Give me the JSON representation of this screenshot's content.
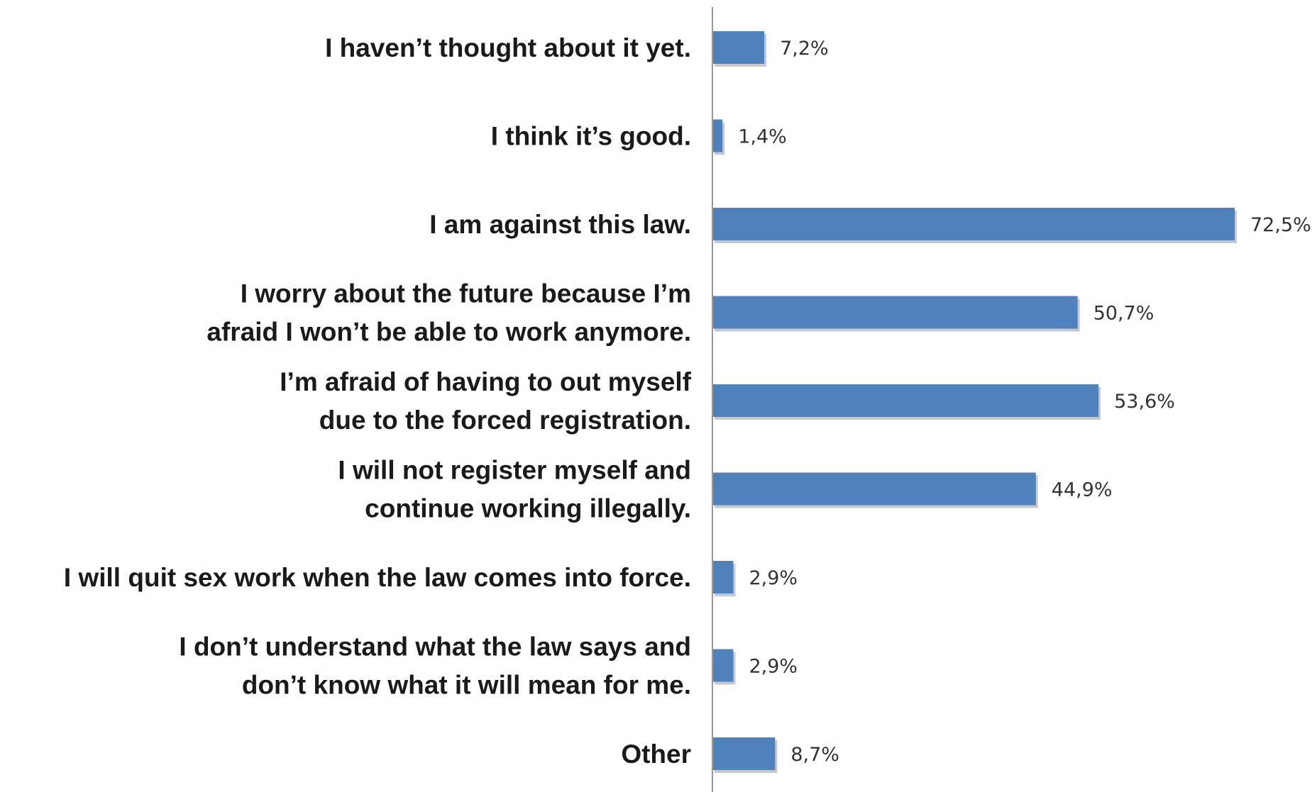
{
  "chart_data": {
    "type": "bar",
    "orientation": "horizontal",
    "categories": [
      [
        "I haven’t thought about it yet."
      ],
      [
        "I think it’s good."
      ],
      [
        "I am against this law."
      ],
      [
        "I worry about the future because I’m",
        "afraid I won’t be able to work anymore."
      ],
      [
        "I’m afraid of having to out myself",
        "due to the forced registration."
      ],
      [
        "I will not register myself and",
        "continue working illegally."
      ],
      [
        "I will quit sex work when the law comes into force."
      ],
      [
        "I don’t understand what the law says and",
        "don’t know what it will mean for me."
      ],
      [
        "Other"
      ]
    ],
    "values": [
      7.2,
      1.4,
      72.5,
      50.7,
      53.6,
      44.9,
      2.9,
      2.9,
      8.7
    ],
    "value_labels": [
      "7,2%",
      "1,4%",
      "72,5%",
      "50,7%",
      "53,6%",
      "44,9%",
      "2,9%",
      "2,9%",
      "8,7%"
    ],
    "xlim": [
      0,
      72.5
    ],
    "grid": false,
    "legend": "none",
    "bar_color": "#4f81bd",
    "axis_color": "#999999"
  }
}
